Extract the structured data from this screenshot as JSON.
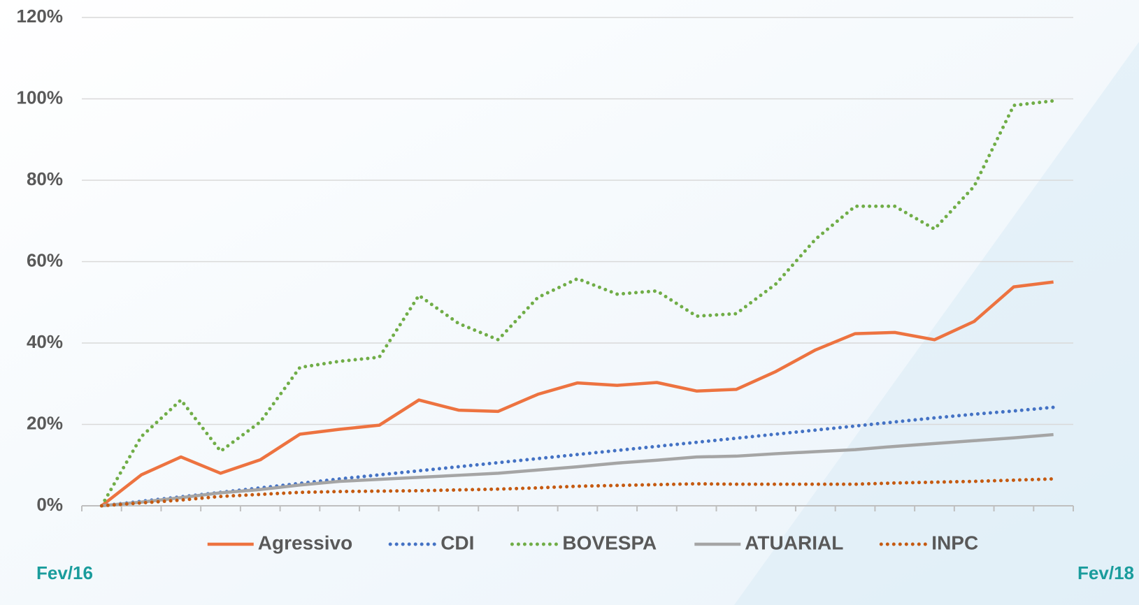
{
  "chart_data": {
    "type": "line",
    "categories": [
      "Fev/16",
      null,
      null,
      null,
      null,
      null,
      null,
      null,
      null,
      null,
      null,
      null,
      null,
      null,
      null,
      null,
      null,
      null,
      null,
      null,
      null,
      null,
      null,
      null,
      "Fev/18"
    ],
    "series": [
      {
        "name": "Agressivo",
        "color": "#ed7340",
        "dash": "solid",
        "values": [
          0,
          7.6,
          12,
          8,
          11.3,
          17.6,
          18.8,
          19.8,
          26,
          23.5,
          23.2,
          27.4,
          30.2,
          29.6,
          30.3,
          28.2,
          28.6,
          33,
          38.3,
          42.3,
          42.6,
          40.8,
          45.3,
          53.8,
          55
        ]
      },
      {
        "name": "CDI",
        "color": "#4472c4",
        "dash": "dotted",
        "values": [
          0,
          1.1,
          2.2,
          3.3,
          4.4,
          5.5,
          6.6,
          7.6,
          8.6,
          9.6,
          10.6,
          11.6,
          12.6,
          13.6,
          14.6,
          15.6,
          16.6,
          17.6,
          18.6,
          19.6,
          20.6,
          21.6,
          22.5,
          23.3,
          24.2
        ]
      },
      {
        "name": "BOVESPA",
        "color": "#70ad47",
        "dash": "dotted",
        "values": [
          0,
          17,
          26,
          13.4,
          20.6,
          34,
          35.5,
          36.5,
          51.7,
          44.8,
          40.8,
          51.2,
          55.8,
          52,
          52.8,
          46.6,
          47.2,
          54.5,
          65.5,
          73.6,
          73.6,
          68,
          78.5,
          98.4,
          99.5
        ]
      },
      {
        "name": "ATUARIAL",
        "color": "#a5a5a5",
        "dash": "solid",
        "values": [
          0,
          0.9,
          2,
          3.2,
          4,
          5.1,
          6,
          6.5,
          7,
          7.5,
          8,
          8.8,
          9.6,
          10.5,
          11.2,
          12,
          12.2,
          12.8,
          13.3,
          13.8,
          14.6,
          15.3,
          16,
          16.7,
          17.5
        ]
      },
      {
        "name": "INPC",
        "color": "#c55a11",
        "dash": "dotted",
        "values": [
          0,
          0.7,
          1.4,
          2.3,
          2.8,
          3.3,
          3.5,
          3.6,
          3.7,
          3.9,
          4.1,
          4.4,
          4.8,
          5,
          5.2,
          5.4,
          5.3,
          5.3,
          5.3,
          5.3,
          5.6,
          5.8,
          6,
          6.3,
          6.6
        ]
      }
    ],
    "ylim": [
      0,
      120
    ],
    "yticks": [
      {
        "value": 0,
        "label": "0%"
      },
      {
        "value": 20,
        "label": "20%"
      },
      {
        "value": 40,
        "label": "40%"
      },
      {
        "value": 60,
        "label": "60%"
      },
      {
        "value": 80,
        "label": "80%"
      },
      {
        "value": 100,
        "label": "100%"
      },
      {
        "value": 120,
        "label": "120%"
      }
    ],
    "grid": true,
    "legend": "bottom"
  }
}
